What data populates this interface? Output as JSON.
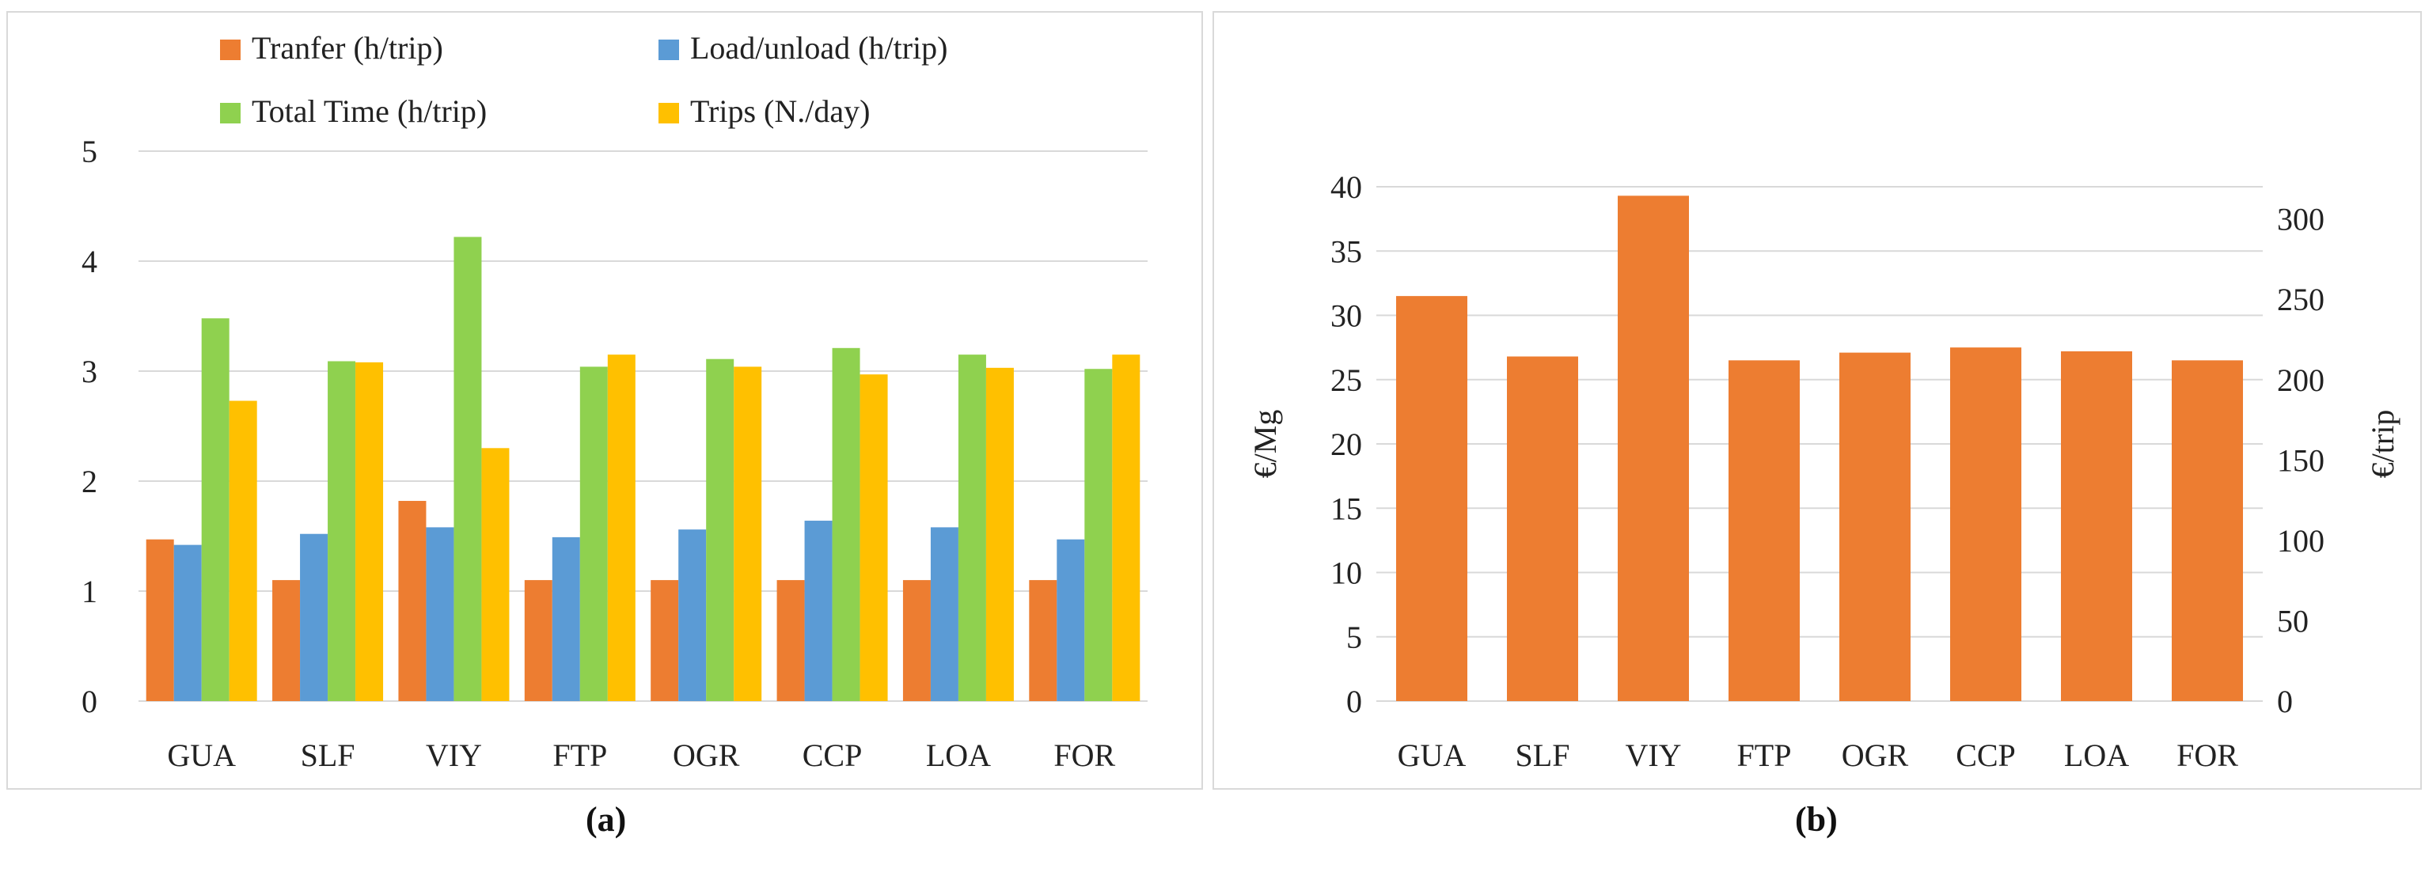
{
  "chart_data": [
    {
      "type": "bar",
      "panel_label": "(a)",
      "categories": [
        "GUA",
        "SLF",
        "VIY",
        "FTP",
        "OGR",
        "CCP",
        "LOA",
        "FOR"
      ],
      "series": [
        {
          "name": "Tranfer (h/trip)",
          "color": "#ED7D31",
          "values": [
            1.47,
            1.1,
            1.82,
            1.1,
            1.1,
            1.1,
            1.1,
            1.1
          ]
        },
        {
          "name": "Load/unload (h/trip)",
          "color": "#5B9BD5",
          "values": [
            1.42,
            1.52,
            1.58,
            1.49,
            1.56,
            1.64,
            1.58,
            1.47
          ]
        },
        {
          "name": "Total Time (h/trip)",
          "color": "#8FD14F",
          "values": [
            3.48,
            3.09,
            4.22,
            3.04,
            3.11,
            3.21,
            3.15,
            3.02
          ]
        },
        {
          "name": "Trips (N./day)",
          "color": "#FFC000",
          "values": [
            2.73,
            3.08,
            2.3,
            3.15,
            3.04,
            2.97,
            3.03,
            3.15
          ]
        }
      ],
      "yticks": [
        "0",
        "1",
        "2",
        "3",
        "4",
        "5"
      ],
      "ylim": [
        0,
        5
      ],
      "xlabel": "",
      "ylabel": "",
      "grid": true,
      "legend_position": "top"
    },
    {
      "type": "bar",
      "panel_label": "(b)",
      "categories": [
        "GUA",
        "SLF",
        "VIY",
        "FTP",
        "OGR",
        "CCP",
        "LOA",
        "FOR"
      ],
      "series": [
        {
          "name": "€/Mg",
          "color": "#ED7D31",
          "values": [
            31.5,
            26.8,
            39.3,
            26.5,
            27.1,
            27.5,
            27.2,
            26.5
          ]
        }
      ],
      "yticks_left": [
        "0",
        "5",
        "10",
        "15",
        "20",
        "25",
        "30",
        "35",
        "40"
      ],
      "yticks_right": [
        "0",
        "50",
        "100",
        "150",
        "200",
        "250",
        "300"
      ],
      "ylim_left": [
        0,
        40
      ],
      "ylim_right": [
        0,
        320
      ],
      "ylabel_left": "€/Mg",
      "ylabel_right": "€/trip",
      "grid": true
    }
  ]
}
